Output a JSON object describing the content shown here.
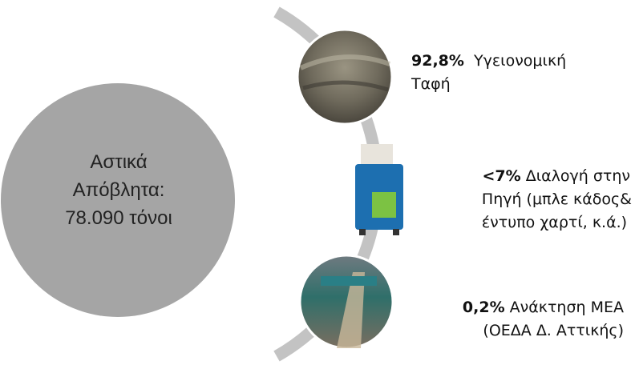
{
  "center": {
    "lines": [
      "Αστικά",
      "Απόβλητα:",
      "78.090 τόνοι"
    ]
  },
  "items": [
    {
      "share": "92,8%",
      "lines": [
        "Υγειονομική",
        "Ταφή"
      ]
    },
    {
      "share": "<7%",
      "lines": [
        "Διαλογή στην",
        "Πηγή (μπλε κάδος&",
        "έντυπο χαρτί, κ.ά.)"
      ]
    },
    {
      "share": "0,2%",
      "lines": [
        "Ανάκτηση ΜΕΑ",
        "(ΟΕΔΑ Δ. Αττικής)"
      ]
    }
  ]
}
